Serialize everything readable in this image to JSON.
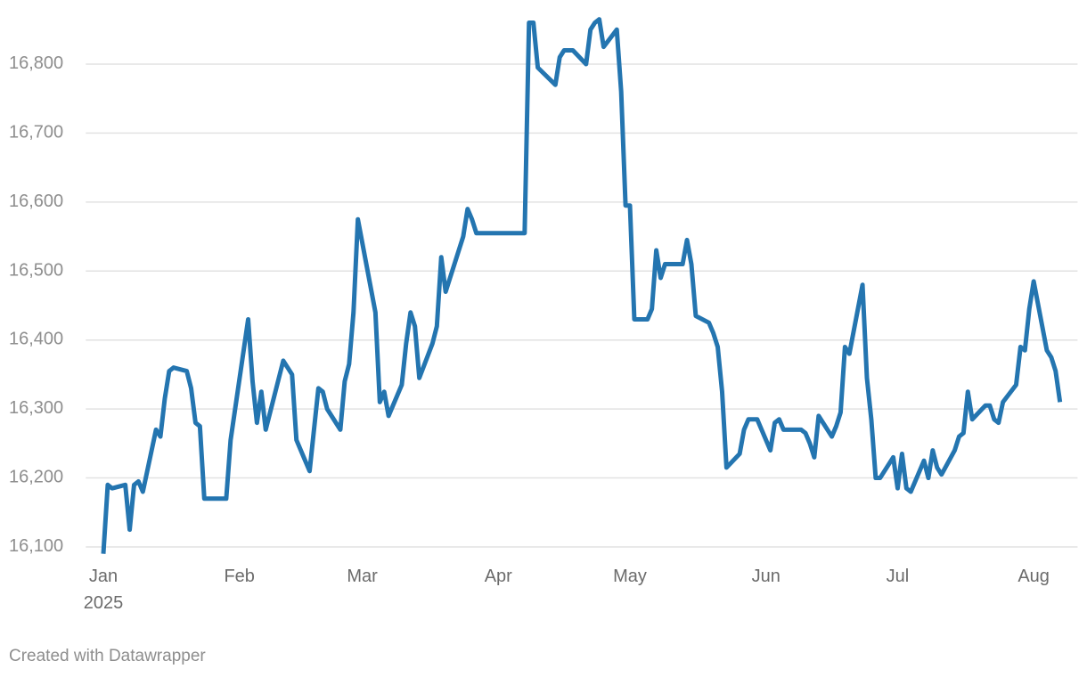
{
  "chart_data": {
    "type": "line",
    "x": [
      0,
      1,
      2,
      5,
      6,
      7,
      8,
      9,
      12,
      13,
      14,
      15,
      16,
      19,
      20,
      21,
      22,
      23,
      28,
      29,
      33,
      34,
      35,
      36,
      37,
      41,
      43,
      44,
      47,
      49,
      50,
      51,
      54,
      55,
      56,
      57,
      58,
      62,
      63,
      64,
      65,
      68,
      69,
      70,
      71,
      72,
      75,
      76,
      77,
      78,
      79,
      82,
      83,
      84,
      85,
      96,
      97,
      98,
      99,
      103,
      104,
      105,
      107,
      110,
      111,
      112,
      113,
      114,
      117,
      118,
      119,
      120,
      121,
      124,
      125,
      126,
      127,
      128,
      132,
      133,
      134,
      135,
      138,
      139,
      140,
      141,
      142,
      145,
      146,
      147,
      149,
      152,
      153,
      154,
      155,
      159,
      160,
      161,
      162,
      163,
      166,
      167,
      168,
      169,
      170,
      173,
      174,
      175,
      176,
      177,
      180,
      181,
      182,
      183,
      184,
      187,
      188,
      189,
      190,
      191,
      194,
      195,
      196,
      197,
      198,
      201,
      202,
      203,
      204,
      205,
      208,
      209,
      210,
      211,
      212,
      215,
      216,
      217,
      218
    ],
    "series": [
      {
        "color": "#2475b0",
        "values": [
          16090,
          16190,
          16185,
          16190,
          16125,
          16190,
          16195,
          16180,
          16270,
          16260,
          16315,
          16355,
          16360,
          16355,
          16330,
          16280,
          16275,
          16170,
          16170,
          16255,
          16430,
          16340,
          16280,
          16325,
          16270,
          16370,
          16350,
          16255,
          16210,
          16330,
          16325,
          16300,
          16270,
          16340,
          16365,
          16440,
          16575,
          16440,
          16310,
          16325,
          16290,
          16335,
          16395,
          16440,
          16420,
          16345,
          16395,
          16420,
          16520,
          16470,
          16490,
          16550,
          16590,
          16575,
          16555,
          16555,
          16860,
          16860,
          16795,
          16770,
          16810,
          16820,
          16820,
          16800,
          16850,
          16860,
          16865,
          16825,
          16850,
          16760,
          16595,
          16595,
          16430,
          16430,
          16445,
          16530,
          16490,
          16510,
          16510,
          16545,
          16510,
          16435,
          16425,
          16410,
          16390,
          16325,
          16215,
          16235,
          16270,
          16285,
          16285,
          16240,
          16280,
          16285,
          16270,
          16270,
          16265,
          16250,
          16230,
          16290,
          16260,
          16275,
          16295,
          16390,
          16380,
          16480,
          16345,
          16285,
          16200,
          16200,
          16230,
          16185,
          16235,
          16185,
          16180,
          16225,
          16200,
          16240,
          16215,
          16205,
          16240,
          16260,
          16265,
          16325,
          16285,
          16305,
          16305,
          16285,
          16280,
          16310,
          16335,
          16390,
          16385,
          16445,
          16485,
          16385,
          16375,
          16355,
          16310
        ]
      }
    ],
    "xlim": [
      -4,
      222
    ],
    "xticks": [
      {
        "value": 0,
        "label": "Jan\n2025"
      },
      {
        "value": 31,
        "label": "Feb"
      },
      {
        "value": 59,
        "label": "Mar"
      },
      {
        "value": 90,
        "label": "Apr"
      },
      {
        "value": 120,
        "label": "May"
      },
      {
        "value": 151,
        "label": "Jun"
      },
      {
        "value": 181,
        "label": "Jul"
      },
      {
        "value": 212,
        "label": "Aug"
      }
    ],
    "ylim": [
      16070,
      16870
    ],
    "yticks": [
      {
        "value": 16100,
        "label": "16,100"
      },
      {
        "value": 16200,
        "label": "16,200"
      },
      {
        "value": 16300,
        "label": "16,300"
      },
      {
        "value": 16400,
        "label": "16,400"
      },
      {
        "value": 16500,
        "label": "16,500"
      },
      {
        "value": 16600,
        "label": "16,600"
      },
      {
        "value": 16700,
        "label": "16,700"
      },
      {
        "value": 16800,
        "label": "16,800"
      }
    ],
    "grid": true,
    "footer": "Created with Datawrapper"
  }
}
